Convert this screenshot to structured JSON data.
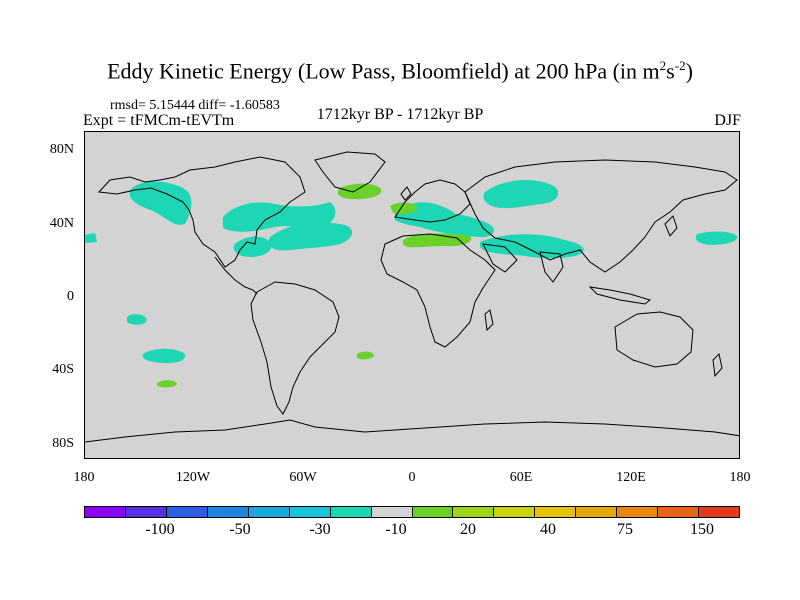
{
  "title": {
    "main": "Eddy Kinetic Energy (Low Pass, Bloomfield) at 200 hPa (in m",
    "exp1": "2",
    "mid": "s",
    "exp2": "-2",
    "close": ")"
  },
  "stats": "rmsd= 5.15444 diff= -1.60583",
  "experiment": "Expt = tFMCm-tEVTm",
  "period": "1712kyr BP - 1712kyr BP",
  "season": "DJF",
  "map": {
    "land_color": "#d3d3d3",
    "y_ticks": [
      "80N",
      "40N",
      "0",
      "40S",
      "80S"
    ],
    "x_ticks": [
      "180",
      "120W",
      "60W",
      "0",
      "60E",
      "120E",
      "180"
    ]
  },
  "colorbar": {
    "colors": [
      "#8b00ff",
      "#5a2ee8",
      "#2a5fe6",
      "#1e86e0",
      "#1aa6d8",
      "#19c4d8",
      "#1dd6b4",
      "#d3d3d3",
      "#6ad12a",
      "#9ed419",
      "#c8d410",
      "#e5c40a",
      "#e8a80a",
      "#e78712",
      "#e5641a",
      "#e23a1a"
    ],
    "labels": [
      "-100",
      "-50",
      "-30",
      "-10",
      "20",
      "40",
      "75",
      "150"
    ]
  }
}
